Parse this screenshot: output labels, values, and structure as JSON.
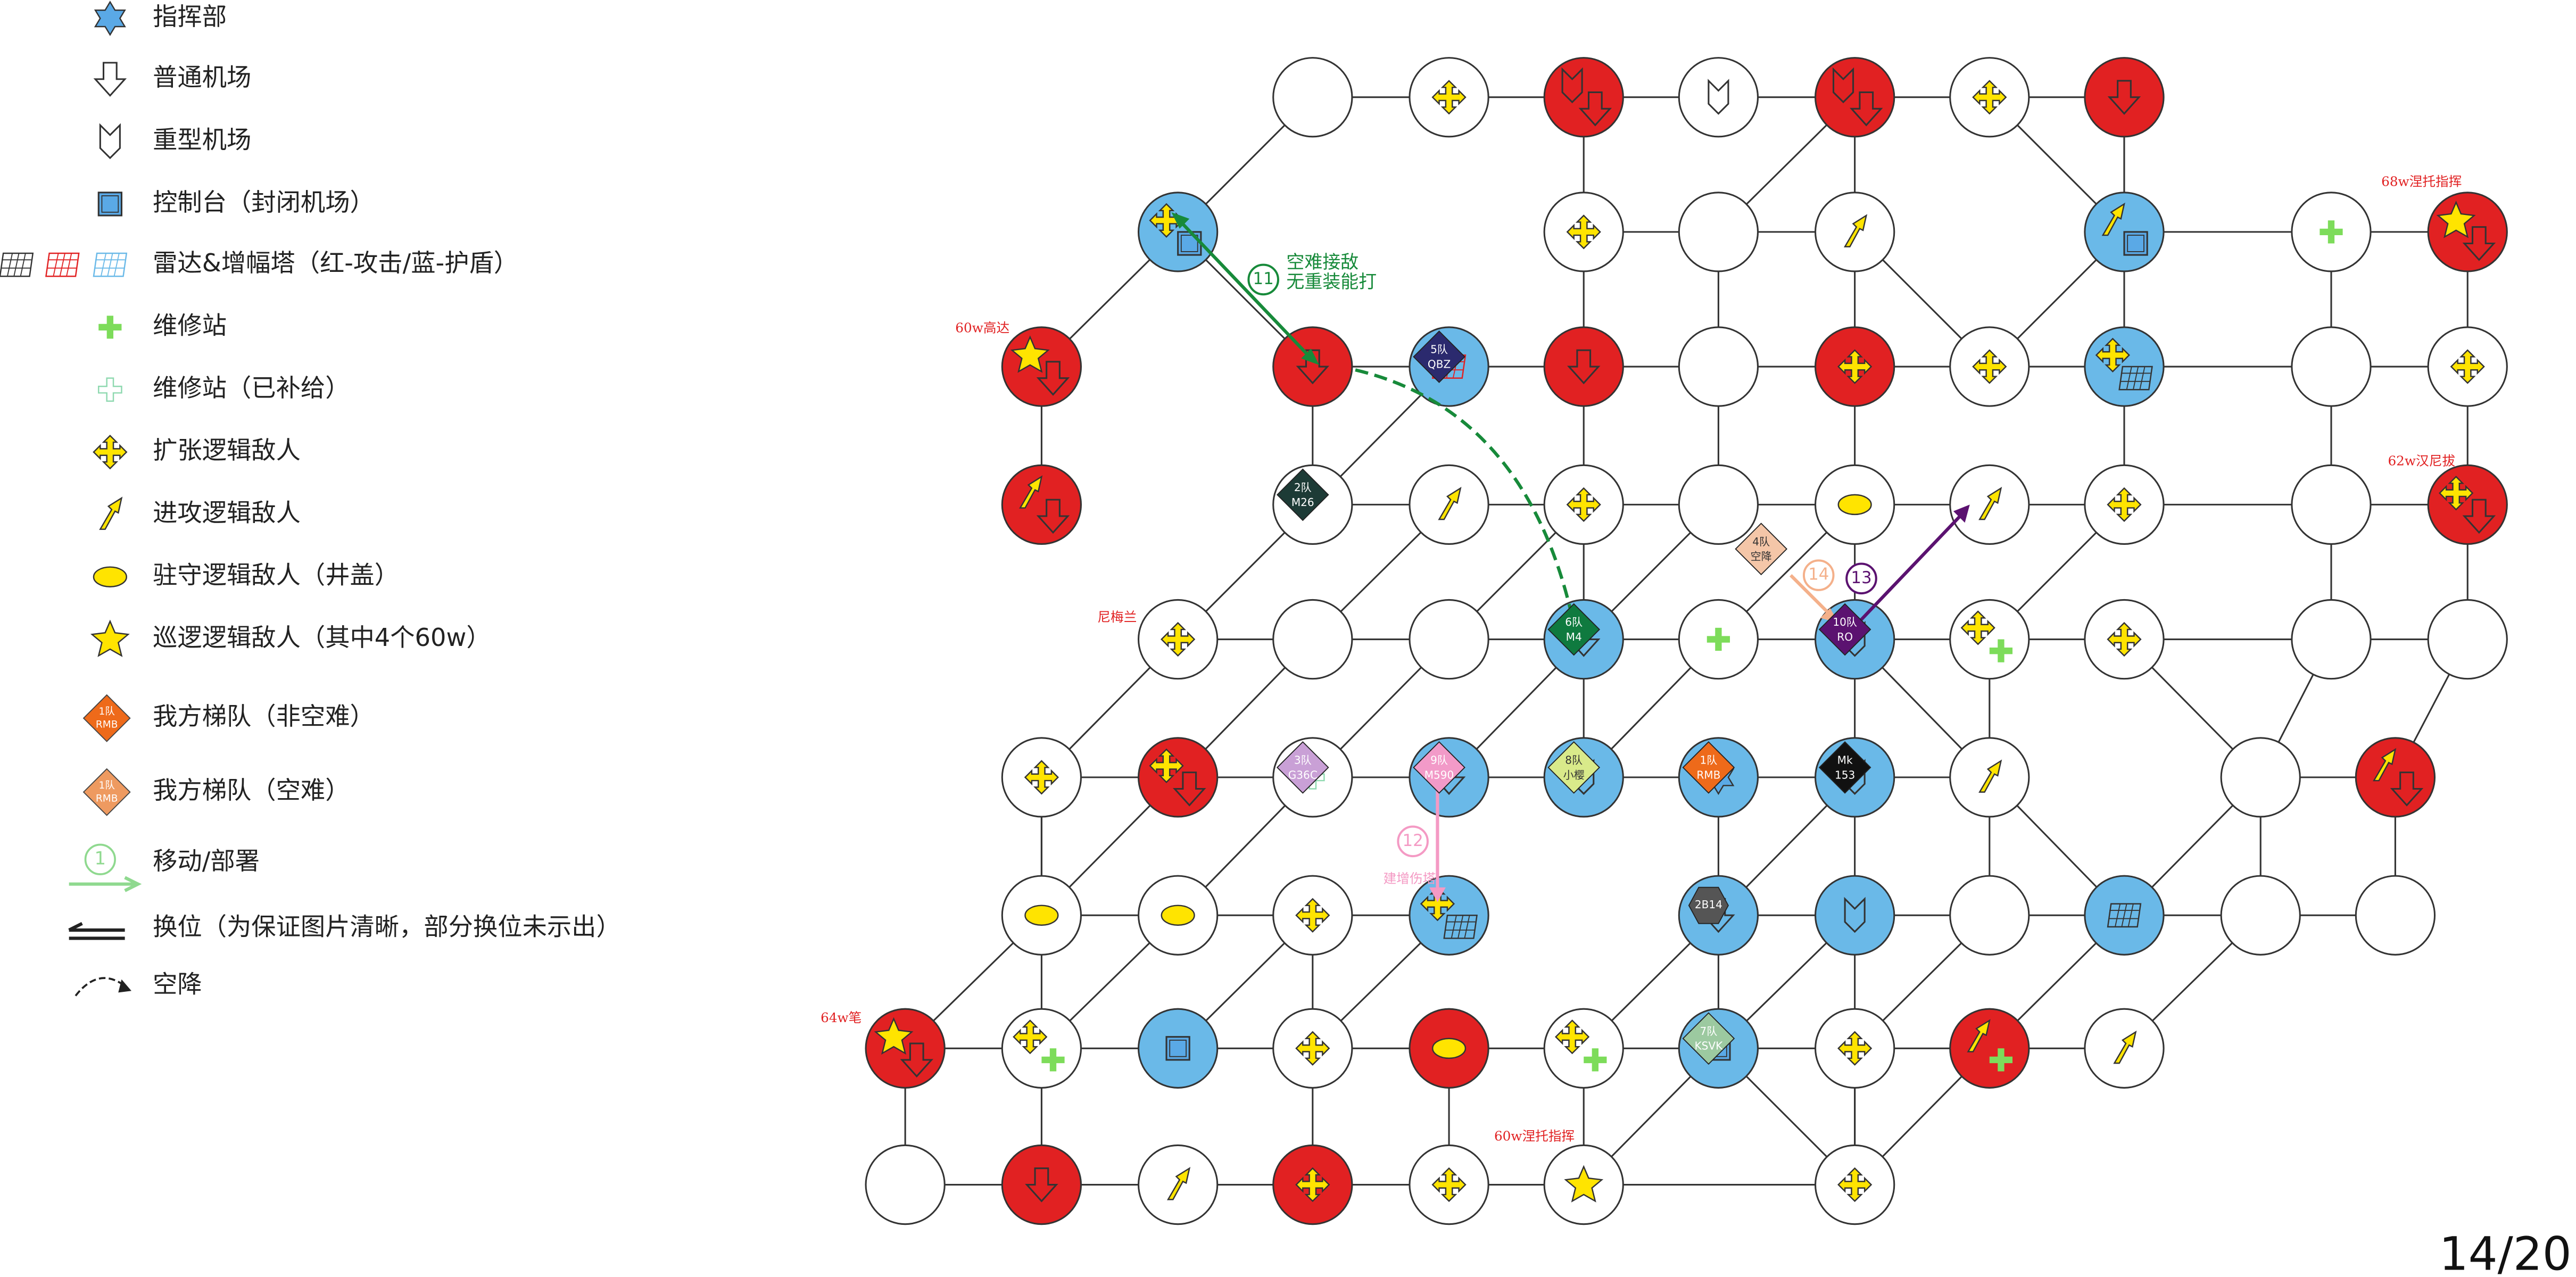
{
  "legend": [
    {
      "label": "指挥部"
    },
    {
      "label": "普通机场"
    },
    {
      "label": "重型机场"
    },
    {
      "label": "控制台（封闭机场）"
    },
    {
      "label": "雷达&增幅塔（红-攻击/蓝-护盾）"
    },
    {
      "label": "维修站"
    },
    {
      "label": "维修站（已补给）"
    },
    {
      "label": "扩张逻辑敌人"
    },
    {
      "label": "进攻逻辑敌人"
    },
    {
      "label": "驻守逻辑敌人（井盖）"
    },
    {
      "label": "巡逻逻辑敌人（其中4个60w）"
    },
    {
      "label": "我方梯队（非空难）"
    },
    {
      "label": "我方梯队（空难）"
    },
    {
      "label": "移动/部署"
    },
    {
      "label": "换位（为保证图片清晰，部分换位未示出）"
    },
    {
      "label": "空降"
    }
  ],
  "legend_badge": {
    "line1": "1队",
    "line2": "RMB"
  },
  "legend_step": "1",
  "squads": [
    {
      "line1": "5队",
      "line2": "QBZ"
    },
    {
      "line1": "2队",
      "line2": "M26"
    },
    {
      "line1": "6队",
      "line2": "M4"
    },
    {
      "line1": "10队",
      "line2": "RO"
    },
    {
      "line1": "4队",
      "line2": "空降"
    },
    {
      "line1": "3队",
      "line2": "G36C"
    },
    {
      "line1": "9队",
      "line2": "M590"
    },
    {
      "line1": "8队",
      "line2": "小樱"
    },
    {
      "line1": "1队",
      "line2": "RMB"
    },
    {
      "line1": "Mk",
      "line2": "153"
    },
    {
      "line1": "2B14"
    },
    {
      "line1": "7队",
      "line2": "KSVK"
    }
  ],
  "annotations": [
    "60w高达",
    "68w涅托指挥",
    "62w汉尼拔",
    "尼梅兰",
    "64w笔",
    "60w涅托指挥"
  ],
  "steps": [
    {
      "number": "11",
      "notes": [
        "空难接敌",
        "无重装能打"
      ]
    },
    {
      "number": "12",
      "notes": [
        "建增伤塔"
      ]
    },
    {
      "number": "13"
    },
    {
      "number": "14"
    }
  ],
  "page_number": "14/20"
}
